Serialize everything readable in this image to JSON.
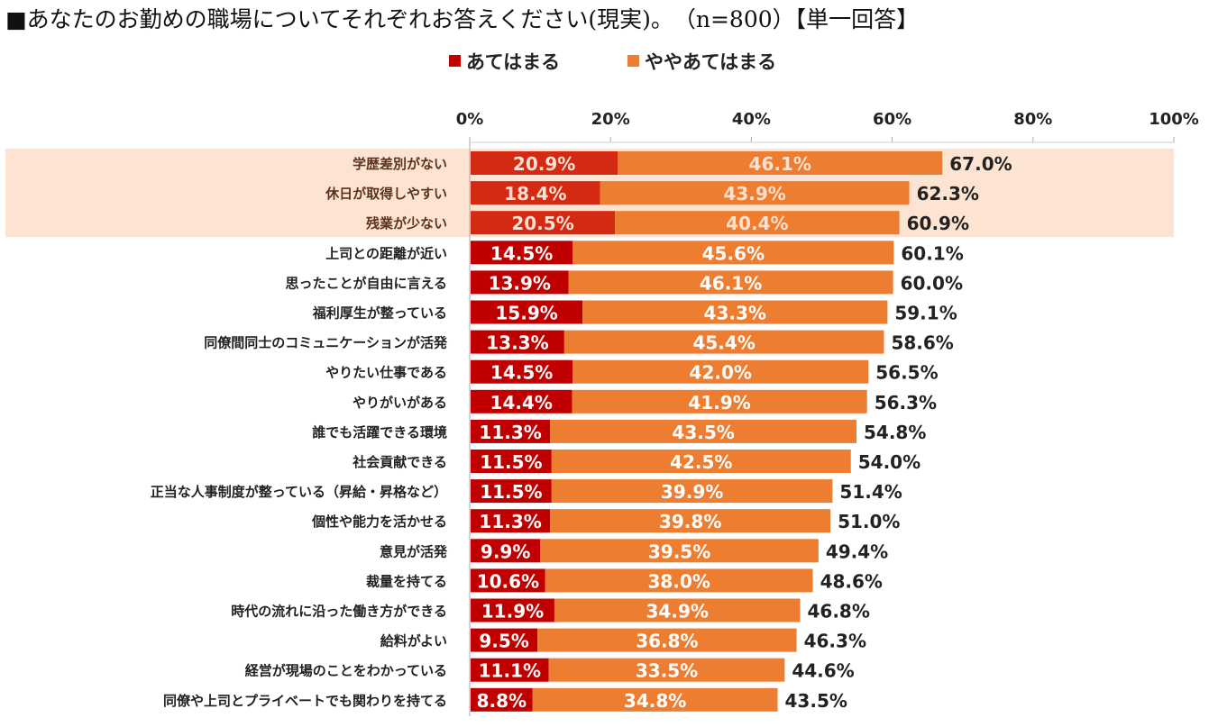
{
  "header": {
    "title": "■あなたのお勤めの職場についてそれぞれお答えください(現実)。　（n=800）【単一回答】"
  },
  "chart_data": {
    "type": "bar",
    "stacked": true,
    "orientation": "horizontal",
    "title": "■あなたのお勤めの職場についてそれぞれお答えください(現実)。　（n=800）【単一回答】",
    "legend_position": "top",
    "xlim": [
      0,
      100
    ],
    "x_ticks": [
      "0%",
      "20%",
      "40%",
      "60%",
      "80%",
      "100%"
    ],
    "highlighted_rows": 3,
    "colors": {
      "series1": "#c00000",
      "series1_highlight": "#d42a14",
      "series2": "#ed7d31",
      "highlight_band": "#fde4d2",
      "label_highlight": "#5b3320"
    },
    "categories": [
      "学歴差別がない",
      "休日が取得しやすい",
      "残業が少ない",
      "上司との距離が近い",
      "思ったことが自由に言える",
      "福利厚生が整っている",
      "同僚間同士のコミュニケーションが活発",
      "やりたい仕事である",
      "やりがいがある",
      "誰でも活躍できる環境",
      "社会貢献できる",
      "正当な人事制度が整っている（昇給・昇格など）",
      "個性や能力を活かせる",
      "意見が活発",
      "裁量を持てる",
      "時代の流れに沿った働き方ができる",
      "給料がよい",
      "経営が現場のことをわかっている",
      "同僚や上司とプライベートでも関わりを持てる"
    ],
    "series": [
      {
        "name": "あてはまる",
        "values": [
          20.9,
          18.4,
          20.5,
          14.5,
          13.9,
          15.9,
          13.3,
          14.5,
          14.4,
          11.3,
          11.5,
          11.5,
          11.3,
          9.9,
          10.6,
          11.9,
          9.5,
          11.1,
          8.8
        ]
      },
      {
        "name": "ややあてはまる",
        "values": [
          46.1,
          43.9,
          40.4,
          45.6,
          46.1,
          43.3,
          45.4,
          42.0,
          41.9,
          43.5,
          42.5,
          39.9,
          39.8,
          39.5,
          38.0,
          34.9,
          36.8,
          33.5,
          34.8
        ]
      }
    ],
    "totals": [
      67.0,
      62.3,
      60.9,
      60.1,
      60.0,
      59.1,
      58.6,
      56.5,
      56.3,
      54.8,
      54.0,
      51.4,
      51.0,
      49.4,
      48.6,
      46.8,
      46.3,
      44.6,
      43.5
    ]
  }
}
